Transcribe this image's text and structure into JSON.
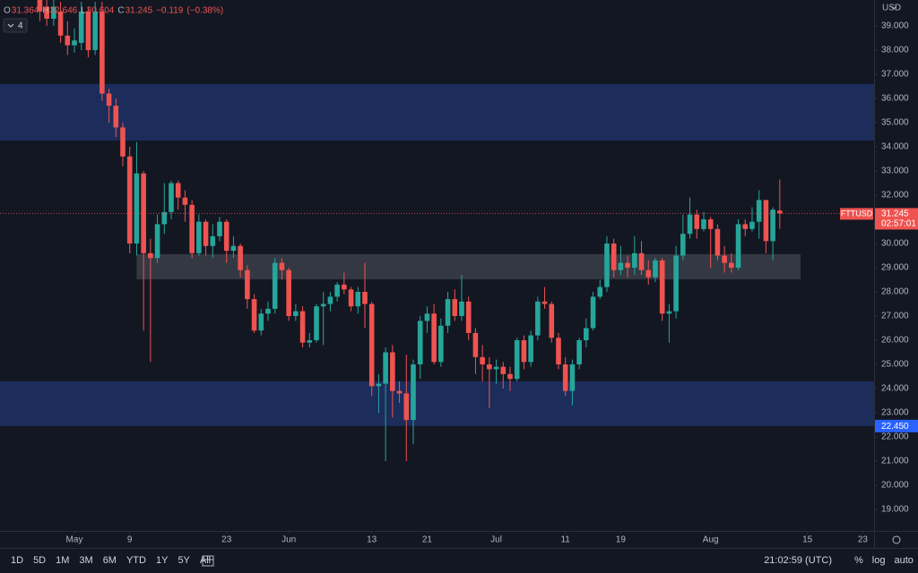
{
  "chart_data": {
    "type": "candlestick",
    "symbol": "FTTUSD",
    "currency": "USD",
    "up_color": "#26a69a",
    "down_color": "#ef5350",
    "x": [
      "04-26",
      "04-27",
      "04-28",
      "04-29",
      "04-30",
      "05-01",
      "05-02",
      "05-03",
      "05-04",
      "05-05",
      "05-06",
      "05-07",
      "05-08",
      "05-09",
      "05-10",
      "05-11",
      "05-12",
      "05-13",
      "05-14",
      "05-15",
      "05-16",
      "05-17",
      "05-18",
      "05-19",
      "05-20",
      "05-21",
      "05-22",
      "05-23",
      "05-24",
      "05-25",
      "05-26",
      "05-27",
      "05-28",
      "05-29",
      "05-30",
      "05-31",
      "06-01",
      "06-02",
      "06-03",
      "06-04",
      "06-05",
      "06-06",
      "06-07",
      "06-08",
      "06-09",
      "06-10",
      "06-11",
      "06-12",
      "06-13",
      "06-14",
      "06-15",
      "06-16",
      "06-17",
      "06-18",
      "06-19",
      "06-20",
      "06-21",
      "06-22",
      "06-23",
      "06-24",
      "06-25",
      "06-26",
      "06-27",
      "06-28",
      "06-29",
      "06-30",
      "07-01",
      "07-02",
      "07-03",
      "07-04",
      "07-05",
      "07-06",
      "07-07",
      "07-08",
      "07-09",
      "07-10",
      "07-11",
      "07-12",
      "07-13",
      "07-14",
      "07-15",
      "07-16",
      "07-17",
      "07-18",
      "07-19",
      "07-20",
      "07-21",
      "07-22",
      "07-23",
      "07-24",
      "07-25",
      "07-26",
      "07-27",
      "07-28",
      "07-29",
      "07-30",
      "07-31",
      "08-01",
      "08-02",
      "08-03",
      "08-04",
      "08-05",
      "08-06",
      "08-07",
      "08-08",
      "08-09",
      "08-10",
      "08-11"
    ],
    "open": [
      40.2,
      39.8,
      39.3,
      39.6,
      38.6,
      38.2,
      38.3,
      39.6,
      38.0,
      39.6,
      36.2,
      35.7,
      34.8,
      33.6,
      30.0,
      32.9,
      29.6,
      29.4,
      30.8,
      31.3,
      32.5,
      31.9,
      31.6,
      29.6,
      30.9,
      29.9,
      30.3,
      30.9,
      29.7,
      29.9,
      28.9,
      27.7,
      26.4,
      27.1,
      27.3,
      29.2,
      28.9,
      27.0,
      27.2,
      25.9,
      26.0,
      27.4,
      27.5,
      27.8,
      28.3,
      28.1,
      27.4,
      28.0,
      27.5,
      24.1,
      24.2,
      25.5,
      23.9,
      23.8,
      22.7,
      25.0,
      26.8,
      27.1,
      25.1,
      26.6,
      27.7,
      27.0,
      27.6,
      26.3,
      25.3,
      25.0,
      24.8,
      24.9,
      24.6,
      24.4,
      26.0,
      25.1,
      26.2,
      27.6,
      27.5,
      26.1,
      25.0,
      23.9,
      25.0,
      26.0,
      26.5,
      27.8,
      28.2,
      30.0,
      28.9,
      29.2,
      29.0,
      29.6,
      28.9,
      28.6,
      29.3,
      27.1,
      27.2,
      29.5,
      30.4,
      31.2,
      30.6,
      31.0,
      30.6,
      29.5,
      29.2,
      29.0,
      30.8,
      30.6,
      30.9,
      31.8,
      30.1,
      31.364
    ],
    "high": [
      40.8,
      40.2,
      40.3,
      40.0,
      39.2,
      38.9,
      40.0,
      39.8,
      40.0,
      40.0,
      36.4,
      36.0,
      35.0,
      34.0,
      34.2,
      33.0,
      30.2,
      31.2,
      32.5,
      32.6,
      32.6,
      32.2,
      31.8,
      31.2,
      31.0,
      30.8,
      31.1,
      31.0,
      30.3,
      30.0,
      29.1,
      27.9,
      27.3,
      27.6,
      29.4,
      29.4,
      29.0,
      27.5,
      27.4,
      26.3,
      27.5,
      28.0,
      28.0,
      28.4,
      28.8,
      28.2,
      28.2,
      29.2,
      27.6,
      24.6,
      25.7,
      25.8,
      24.3,
      25.4,
      25.2,
      27.0,
      27.4,
      27.5,
      26.9,
      28.0,
      28.1,
      28.7,
      27.8,
      26.5,
      25.8,
      25.3,
      25.2,
      25.1,
      24.9,
      26.1,
      26.2,
      26.4,
      27.8,
      28.2,
      27.6,
      26.3,
      25.3,
      25.2,
      26.1,
      26.9,
      28.0,
      28.5,
      30.3,
      30.2,
      29.9,
      29.5,
      30.3,
      30.1,
      29.3,
      29.4,
      29.4,
      27.5,
      29.9,
      31.2,
      31.9,
      31.4,
      31.3,
      31.1,
      30.8,
      29.9,
      29.6,
      31.0,
      31.0,
      31.5,
      32.2,
      31.8,
      31.5,
      32.646
    ],
    "low": [
      39.2,
      39.0,
      39.0,
      38.3,
      37.8,
      37.9,
      38.0,
      37.7,
      37.8,
      35.9,
      35.0,
      34.4,
      33.2,
      29.6,
      29.5,
      26.4,
      25.1,
      29.2,
      30.4,
      31.0,
      31.4,
      30.9,
      29.4,
      29.5,
      29.5,
      29.4,
      30.1,
      29.2,
      29.4,
      28.6,
      27.3,
      26.3,
      26.2,
      26.8,
      27.1,
      28.5,
      26.8,
      26.8,
      25.7,
      25.7,
      25.9,
      25.8,
      27.2,
      27.6,
      27.9,
      27.2,
      27.1,
      26.5,
      23.7,
      23.0,
      21.0,
      22.8,
      23.4,
      21.0,
      21.7,
      24.4,
      26.3,
      25.0,
      24.9,
      26.3,
      26.8,
      26.8,
      26.0,
      24.6,
      24.3,
      23.2,
      24.2,
      24.0,
      23.9,
      24.3,
      24.8,
      24.9,
      26.0,
      27.3,
      25.9,
      24.8,
      23.7,
      23.3,
      24.8,
      25.7,
      26.4,
      27.7,
      28.0,
      28.6,
      28.7,
      28.6,
      28.7,
      28.7,
      28.3,
      28.4,
      26.8,
      25.9,
      26.9,
      29.3,
      30.2,
      30.2,
      30.5,
      29.0,
      29.3,
      28.8,
      28.8,
      28.9,
      30.3,
      30.5,
      30.2,
      29.6,
      29.3,
      30.604
    ],
    "close": [
      39.6,
      39.3,
      39.8,
      38.6,
      38.2,
      38.4,
      39.6,
      38.0,
      39.6,
      36.2,
      35.7,
      34.8,
      33.6,
      30.0,
      32.9,
      29.6,
      29.4,
      30.8,
      31.3,
      32.5,
      31.9,
      31.6,
      29.6,
      30.9,
      29.9,
      30.3,
      30.9,
      29.7,
      29.9,
      28.9,
      27.7,
      26.4,
      27.1,
      27.3,
      29.2,
      28.9,
      27.0,
      27.2,
      25.9,
      26.0,
      27.4,
      27.5,
      27.8,
      28.3,
      28.1,
      27.4,
      28.0,
      27.5,
      24.1,
      24.2,
      25.5,
      23.9,
      23.8,
      22.7,
      25.0,
      26.8,
      27.1,
      25.1,
      26.6,
      27.7,
      27.0,
      27.6,
      26.3,
      25.3,
      25.0,
      24.8,
      24.9,
      24.6,
      24.4,
      26.0,
      25.1,
      26.2,
      27.6,
      27.5,
      26.1,
      25.0,
      23.9,
      25.0,
      26.0,
      26.5,
      27.8,
      28.2,
      30.0,
      28.9,
      29.2,
      29.0,
      29.6,
      28.9,
      28.6,
      29.3,
      27.1,
      27.2,
      29.5,
      30.4,
      31.2,
      30.6,
      31.0,
      30.6,
      29.5,
      29.2,
      29.0,
      30.8,
      30.6,
      30.9,
      31.8,
      30.1,
      31.4,
      31.245
    ],
    "ylim": [
      18.111,
      40.074
    ],
    "yticks": [
      {
        "value": 19,
        "label": "19.000"
      },
      {
        "value": 20,
        "label": "20.000"
      },
      {
        "value": 21,
        "label": "21.000"
      },
      {
        "value": 22,
        "label": "22.000"
      },
      {
        "value": 23,
        "label": "23.000"
      },
      {
        "value": 24,
        "label": "24.000"
      },
      {
        "value": 25,
        "label": "25.000"
      },
      {
        "value": 26,
        "label": "26.000"
      },
      {
        "value": 27,
        "label": "27.000"
      },
      {
        "value": 28,
        "label": "28.000"
      },
      {
        "value": 29,
        "label": "29.000"
      },
      {
        "value": 30,
        "label": "30.000"
      },
      {
        "value": 31,
        "label": "31.000"
      },
      {
        "value": 32,
        "label": "32.000"
      },
      {
        "value": 33,
        "label": "33.000"
      },
      {
        "value": 34,
        "label": "34.000"
      },
      {
        "value": 35,
        "label": "35.000"
      },
      {
        "value": 36,
        "label": "36.000"
      },
      {
        "value": 37,
        "label": "37.000"
      },
      {
        "value": 38,
        "label": "38.000"
      },
      {
        "value": 39,
        "label": "39.000"
      }
    ],
    "xticks": [
      {
        "value": "05-01",
        "label": "May"
      },
      {
        "value": "05-09",
        "label": "9"
      },
      {
        "value": "05-23",
        "label": "23"
      },
      {
        "value": "06-01",
        "label": "Jun"
      },
      {
        "value": "06-13",
        "label": "13"
      },
      {
        "value": "06-21",
        "label": "21"
      },
      {
        "value": "07-01",
        "label": "Jul"
      },
      {
        "value": "07-11",
        "label": "11"
      },
      {
        "value": "07-19",
        "label": "19"
      },
      {
        "value": "08-01",
        "label": "Aug"
      },
      {
        "value": "08-15",
        "label": "15"
      },
      {
        "value": "08-23",
        "label": "23"
      }
    ],
    "zones": [
      {
        "from": 34.26,
        "to": 36.6,
        "color": "#1e2f62"
      },
      {
        "from": 22.45,
        "to": 24.3,
        "color": "#1e2f62"
      },
      {
        "from": 28.52,
        "to": 29.56,
        "color": "#3b3e48",
        "start": "05-10",
        "end": "08-14"
      }
    ],
    "price_tag": {
      "value": 22.45,
      "label": "22.450",
      "color": "#2962ff"
    },
    "countdown": "02:57:01"
  },
  "header": {
    "o": "O",
    "h": "H",
    "l": "L",
    "c": "C",
    "change": "−0.119",
    "change_pct": "(−0.38%)",
    "indicators": "4"
  },
  "toolbar": {
    "timeframes": [
      "1D",
      "5D",
      "1M",
      "3M",
      "6M",
      "YTD",
      "1Y",
      "5Y",
      "All"
    ],
    "clock": "21:02:59 (UTC)",
    "scale_buttons": [
      "%",
      "log",
      "auto"
    ]
  }
}
